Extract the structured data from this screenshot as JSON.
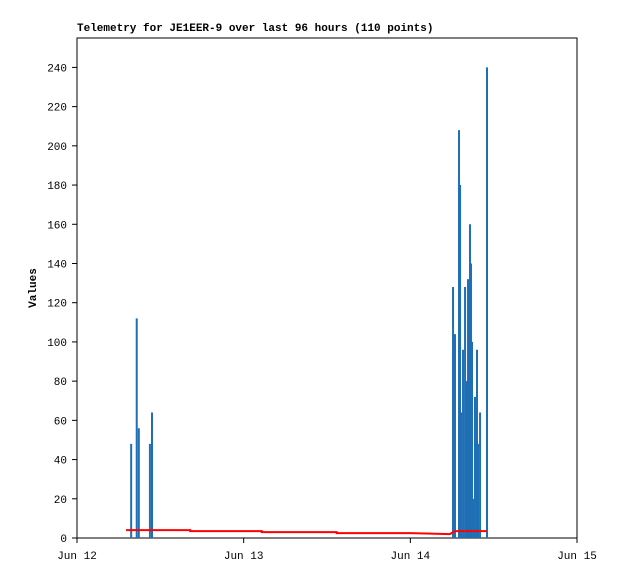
{
  "chart_data": {
    "type": "telemetry",
    "title": "Telemetry for JE1EER-9 over last 96 hours (110 points)",
    "y_label": "Values",
    "xlim": [
      0,
      72
    ],
    "xticks": [
      {
        "value": 0,
        "label": "Jun 12"
      },
      {
        "value": 24,
        "label": "Jun 13"
      },
      {
        "value": 48,
        "label": "Jun 14"
      },
      {
        "value": 72,
        "label": "Jun 15"
      }
    ],
    "ylim": [
      0,
      255
    ],
    "yticks": [
      0,
      20,
      40,
      60,
      80,
      100,
      120,
      140,
      160,
      180,
      200,
      220,
      240
    ],
    "grid": false,
    "series": [
      {
        "color": "#1f6fb4",
        "style": "impulse",
        "x": [
          7.8,
          8.6,
          8.9,
          10.5,
          10.8,
          54.15,
          54.43,
          55.01,
          55.16,
          55.3,
          55.59,
          55.88,
          56.16,
          56.31,
          56.59,
          56.74,
          56.88,
          57.17,
          57.31,
          57.6,
          57.75,
          58.04,
          59.04
        ],
        "values": [
          48,
          112,
          56,
          48,
          64,
          128,
          104,
          208,
          180,
          64,
          96,
          128,
          80,
          132,
          160,
          140,
          100,
          20,
          72,
          96,
          48,
          64,
          240
        ]
      },
      {
        "color": "#ff0000",
        "style": "line",
        "x": [
          7.06,
          16.3,
          16.3,
          26.6,
          26.6,
          37.4,
          37.4,
          48.0,
          53.7,
          54.4,
          59.0
        ],
        "values": [
          4,
          4,
          3.5,
          3.5,
          3,
          3,
          2.5,
          2.5,
          2,
          3.5,
          3.5
        ]
      }
    ]
  }
}
